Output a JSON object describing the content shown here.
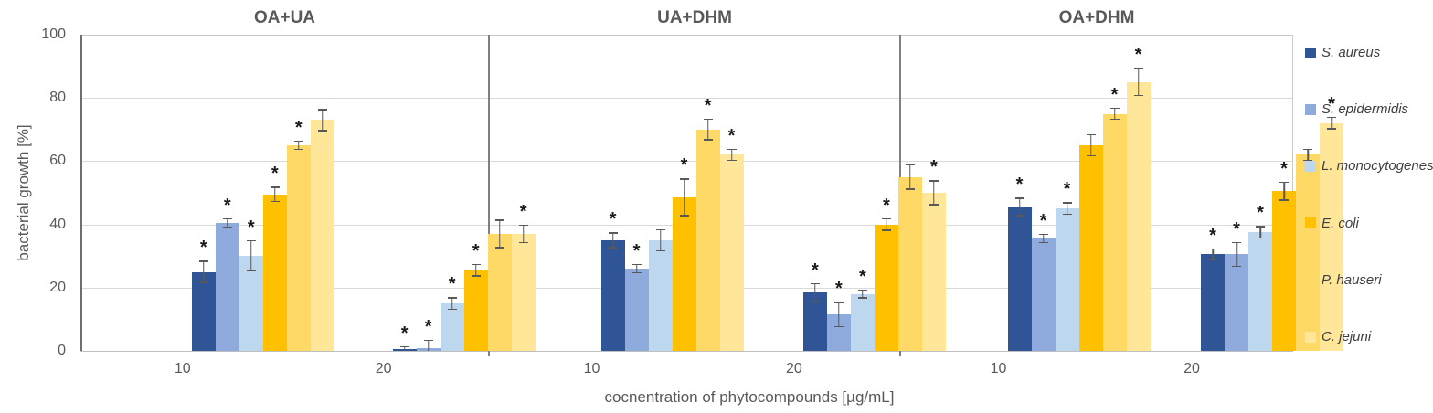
{
  "chart_data": {
    "type": "bar",
    "title": "",
    "ylabel": "bacterial growth [%]",
    "xlabel": "cocnentration of phytocompounds  [µg/mL]",
    "ylim": [
      0,
      100
    ],
    "yticks": [
      0,
      20,
      40,
      60,
      80,
      100
    ],
    "grid": true,
    "legend_position": "right",
    "significance_marker": "*",
    "colors": {
      "gridline": "#d9d9d9",
      "axis": "#6f6f6f",
      "text": "#595959",
      "error_bar": "#595959",
      "star": "#1a1a1a"
    },
    "series": [
      {
        "name": "S. aureus",
        "color": "#2f5597"
      },
      {
        "name": "S. epidermidis",
        "color": "#8faadc"
      },
      {
        "name": "L. monocytogenes",
        "color": "#bdd7ee"
      },
      {
        "name": "E. coli",
        "color": "#ffc000"
      },
      {
        "name": "P. hauseri",
        "color": "#ffd966"
      },
      {
        "name": "C. jejuni",
        "color": "#ffe699"
      }
    ],
    "group_labels": [
      "10",
      "20"
    ],
    "panels": [
      {
        "title": "OA+UA",
        "groups": [
          {
            "label": "10",
            "values": [
              25,
              40.5,
              30,
              49.5,
              65,
              73
            ],
            "errors": [
              3.5,
              1.5,
              5,
              2.5,
              1.5,
              3.5
            ],
            "significant": [
              true,
              true,
              true,
              true,
              true,
              false
            ]
          },
          {
            "label": "20",
            "values": [
              0.5,
              1,
              15,
              25.5,
              37,
              37
            ],
            "errors": [
              1,
              2.5,
              2,
              2,
              4.5,
              3
            ],
            "significant": [
              true,
              true,
              true,
              true,
              false,
              true
            ]
          }
        ]
      },
      {
        "title": "UA+DHM",
        "groups": [
          {
            "label": "10",
            "values": [
              35,
              26,
              35,
              48.5,
              70,
              62
            ],
            "errors": [
              2.5,
              1.5,
              3.5,
              6,
              3.5,
              2
            ],
            "significant": [
              true,
              true,
              false,
              true,
              true,
              true
            ]
          },
          {
            "label": "20",
            "values": [
              18.5,
              11.5,
              18,
              40,
              55,
              50
            ],
            "errors": [
              3,
              4,
              1.5,
              2,
              4,
              4
            ],
            "significant": [
              true,
              true,
              true,
              true,
              false,
              true
            ]
          }
        ]
      },
      {
        "title": "OA+DHM",
        "groups": [
          {
            "label": "10",
            "values": [
              45.5,
              35.5,
              45,
              65,
              75,
              85
            ],
            "errors": [
              3,
              1.5,
              2,
              3.5,
              2,
              4.5
            ],
            "significant": [
              true,
              true,
              true,
              false,
              true,
              true
            ]
          },
          {
            "label": "20",
            "values": [
              30.5,
              30.5,
              37.5,
              50.5,
              62,
              72
            ],
            "errors": [
              2,
              4,
              2,
              3,
              2,
              2
            ],
            "significant": [
              true,
              true,
              true,
              true,
              false,
              true
            ]
          }
        ]
      }
    ]
  }
}
